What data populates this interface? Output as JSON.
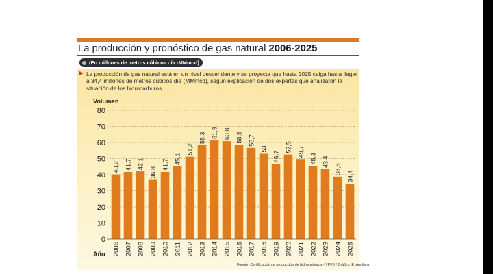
{
  "header": {
    "title_prefix": "La producción y pronóstico de gas natural ",
    "title_years": "2006-2025",
    "unit_note": "(En millones de metros cúbicos día -MMmcd)",
    "description": "La producción de gas natural está en un nivel descendente y se proyecta que hasta 2025 caiga hasta llegar a 34,4 millones de metros cúbicos día (MMmcd), según explicación de dos expertas que analizaron la situación de los hidrocarburos."
  },
  "source": "Fuente: Certificación de producción de hidrocarburos - YPFB / Gráfico: E. Aguilera",
  "colors": {
    "accent": "#d97a2a",
    "bar": "#e07c1e",
    "bullet": "#d3351c",
    "panel": "#fdf1c6"
  },
  "chart_data": {
    "type": "bar",
    "ylabel": "Volumen",
    "xlabel": "Año",
    "ylim": [
      0,
      80
    ],
    "yticks": [
      0,
      10,
      20,
      30,
      40,
      50,
      60,
      70,
      80
    ],
    "grid": "horizontal dashed",
    "categories": [
      "2006",
      "2007",
      "2008",
      "2009",
      "2010",
      "2011",
      "2012",
      "2013",
      "2014",
      "2015",
      "2016",
      "2017",
      "2018",
      "2019",
      "2020",
      "2021",
      "2022",
      "2023",
      "2024",
      "2025"
    ],
    "values": [
      40.2,
      41.7,
      42.1,
      36.8,
      41.7,
      45.1,
      51.2,
      58.3,
      61.3,
      60.8,
      58.5,
      56.7,
      53,
      46.7,
      52.5,
      49.7,
      45.3,
      43.4,
      38.8,
      34.4
    ],
    "value_labels": [
      "40,2",
      "41,7",
      "42,1",
      "36,8",
      "41,7",
      "45,1",
      "51,2",
      "58,3",
      "61,3",
      "60,8",
      "58,5",
      "56,7",
      "53",
      "46,7",
      "52,5",
      "49,7",
      "45,3",
      "43,4",
      "38,8",
      "34,4"
    ]
  }
}
